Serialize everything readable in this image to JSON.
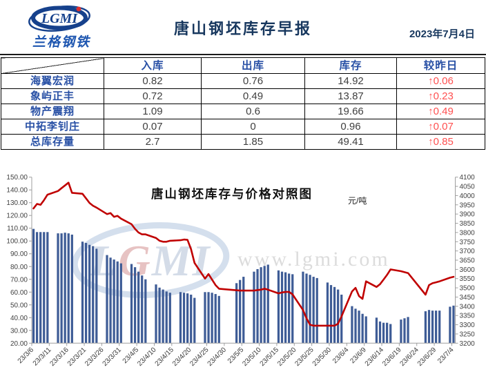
{
  "header": {
    "logo_text": "LGMI",
    "logo_sub": "兰格钢铁",
    "title": "唐山钢坯库存早报",
    "date": "2023年7月4日"
  },
  "table": {
    "corner_label": "",
    "columns": [
      "入库",
      "出库",
      "库存",
      "较昨日"
    ],
    "rows": [
      {
        "name": "海翼宏润",
        "in": "0.82",
        "out": "0.76",
        "stock": "14.92",
        "change": "↑0.06"
      },
      {
        "name": "象屿正丰",
        "in": "0.72",
        "out": "0.49",
        "stock": "13.87",
        "change": "↑0.23"
      },
      {
        "name": "物产震翔",
        "in": "1.09",
        "out": "0.6",
        "stock": "19.66",
        "change": "↑0.49"
      },
      {
        "name": "中拓李钊庄",
        "in": "0.07",
        "out": "0",
        "stock": "0.96",
        "change": "↑0.07"
      },
      {
        "name": "总库存量",
        "in": "2.7",
        "out": "1.85",
        "stock": "49.41",
        "change": "↑0.85"
      }
    ]
  },
  "chart_data": {
    "type": "bar+line",
    "title": "唐山钢坯库存与价格对照图",
    "unit_label": "元/吨",
    "watermark_text": "www.lgmi.com",
    "watermark_logo": "LGMI",
    "legend_position": "none",
    "grid": false,
    "colors": {
      "bar": "#3E5C96",
      "line": "#C00000"
    },
    "x_range": [
      "23/3/6",
      "23/7/4"
    ],
    "x_tick_labels": [
      "23/3/6",
      "23/3/11",
      "23/3/16",
      "23/3/21",
      "23/3/26",
      "23/3/31",
      "23/4/5",
      "23/4/10",
      "23/4/15",
      "23/4/20",
      "23/4/25",
      "23/4/30",
      "23/5/5",
      "23/5/10",
      "23/5/15",
      "23/5/20",
      "23/5/25",
      "23/5/30",
      "23/6/4",
      "23/6/9",
      "23/6/14",
      "23/6/19",
      "23/6/24",
      "23/6/29",
      "23/7/4"
    ],
    "left_axis": {
      "min": 20,
      "max": 150,
      "step": 10,
      "decimals": 2,
      "series": "库存"
    },
    "right_axis": {
      "min": 3200,
      "max": 4100,
      "step": 50,
      "decimals": 0,
      "series": "价格"
    },
    "series": [
      {
        "name": "库存",
        "type": "bar",
        "axis": "left",
        "points": [
          [
            "23/3/6",
            109.5
          ],
          [
            "23/3/7",
            107
          ],
          [
            "23/3/8",
            107
          ],
          [
            "23/3/9",
            107
          ],
          [
            "23/3/10",
            107
          ],
          [
            "23/3/13",
            106
          ],
          [
            "23/3/14",
            106
          ],
          [
            "23/3/15",
            106.5
          ],
          [
            "23/3/16",
            106
          ],
          [
            "23/3/17",
            105
          ],
          [
            "23/3/20",
            99.5
          ],
          [
            "23/3/21",
            98.5
          ],
          [
            "23/3/22",
            97
          ],
          [
            "23/3/23",
            96
          ],
          [
            "23/3/24",
            94
          ],
          [
            "23/3/27",
            89
          ],
          [
            "23/3/28",
            87
          ],
          [
            "23/3/29",
            85.5
          ],
          [
            "23/3/30",
            84
          ],
          [
            "23/3/31",
            82.5
          ],
          [
            "23/4/3",
            82
          ],
          [
            "23/4/4",
            79.5
          ],
          [
            "23/4/5",
            76
          ],
          [
            "23/4/6",
            73
          ],
          [
            "23/4/7",
            70
          ],
          [
            "23/4/10",
            66
          ],
          [
            "23/4/11",
            63.5
          ],
          [
            "23/4/12",
            62
          ],
          [
            "23/4/13",
            60.5
          ],
          [
            "23/4/14",
            59.5
          ],
          [
            "23/4/17",
            60
          ],
          [
            "23/4/18",
            59.5
          ],
          [
            "23/4/19",
            59
          ],
          [
            "23/4/20",
            58
          ],
          [
            "23/4/21",
            55.5
          ],
          [
            "23/4/24",
            60
          ],
          [
            "23/4/25",
            60
          ],
          [
            "23/4/26",
            59.5
          ],
          [
            "23/4/27",
            58.5
          ],
          [
            "23/4/28",
            57
          ],
          [
            "23/5/3",
            67
          ],
          [
            "23/5/4",
            69.5
          ],
          [
            "23/5/5",
            72
          ],
          [
            "23/5/8",
            76
          ],
          [
            "23/5/9",
            78
          ],
          [
            "23/5/10",
            79.5
          ],
          [
            "23/5/11",
            80.5
          ],
          [
            "23/5/12",
            81.5
          ],
          [
            "23/5/15",
            77
          ],
          [
            "23/5/16",
            76
          ],
          [
            "23/5/17",
            75.5
          ],
          [
            "23/5/18",
            74.5
          ],
          [
            "23/5/19",
            74
          ],
          [
            "23/5/22",
            76
          ],
          [
            "23/5/23",
            74.5
          ],
          [
            "23/5/24",
            73.5
          ],
          [
            "23/5/25",
            72
          ],
          [
            "23/5/26",
            71
          ],
          [
            "23/5/29",
            67.5
          ],
          [
            "23/5/30",
            65.5
          ],
          [
            "23/5/31",
            64
          ],
          [
            "23/6/1",
            62
          ],
          [
            "23/6/2",
            58
          ],
          [
            "23/6/5",
            49
          ],
          [
            "23/6/6",
            47
          ],
          [
            "23/6/7",
            45.5
          ],
          [
            "23/6/8",
            43
          ],
          [
            "23/6/9",
            41
          ],
          [
            "23/6/12",
            40
          ],
          [
            "23/6/13",
            37
          ],
          [
            "23/6/14",
            36
          ],
          [
            "23/6/15",
            36
          ],
          [
            "23/6/16",
            35
          ],
          [
            "23/6/19",
            38.5
          ],
          [
            "23/6/20",
            39.5
          ],
          [
            "23/6/21",
            40.5
          ],
          [
            "23/6/26",
            45
          ],
          [
            "23/6/27",
            46
          ],
          [
            "23/6/28",
            45.5
          ],
          [
            "23/6/29",
            45.5
          ],
          [
            "23/6/30",
            45.5
          ],
          [
            "23/7/3",
            48.56
          ],
          [
            "23/7/4",
            49.41
          ]
        ]
      },
      {
        "name": "价格",
        "type": "line",
        "axis": "right",
        "points": [
          [
            "23/3/6",
            3930
          ],
          [
            "23/3/7",
            3955
          ],
          [
            "23/3/8",
            3950
          ],
          [
            "23/3/9",
            3975
          ],
          [
            "23/3/10",
            4005
          ],
          [
            "23/3/13",
            4025
          ],
          [
            "23/3/14",
            4040
          ],
          [
            "23/3/15",
            4055
          ],
          [
            "23/3/16",
            4070
          ],
          [
            "23/3/17",
            4015
          ],
          [
            "23/3/20",
            4010
          ],
          [
            "23/3/21",
            3985
          ],
          [
            "23/3/22",
            3960
          ],
          [
            "23/3/23",
            3945
          ],
          [
            "23/3/24",
            3935
          ],
          [
            "23/3/27",
            3900
          ],
          [
            "23/3/28",
            3905
          ],
          [
            "23/3/29",
            3885
          ],
          [
            "23/3/30",
            3890
          ],
          [
            "23/3/31",
            3875
          ],
          [
            "23/4/3",
            3845
          ],
          [
            "23/4/4",
            3820
          ],
          [
            "23/4/5",
            3800
          ],
          [
            "23/4/6",
            3790
          ],
          [
            "23/4/7",
            3790
          ],
          [
            "23/4/10",
            3770
          ],
          [
            "23/4/11",
            3755
          ],
          [
            "23/4/12",
            3750
          ],
          [
            "23/4/13",
            3750
          ],
          [
            "23/4/14",
            3755
          ],
          [
            "23/4/17",
            3758
          ],
          [
            "23/4/18",
            3762
          ],
          [
            "23/4/19",
            3760
          ],
          [
            "23/4/20",
            3710
          ],
          [
            "23/4/21",
            3635
          ],
          [
            "23/4/24",
            3550
          ],
          [
            "23/4/25",
            3575
          ],
          [
            "23/4/26",
            3545
          ],
          [
            "23/4/27",
            3515
          ],
          [
            "23/4/28",
            3495
          ],
          [
            "23/5/4",
            3485
          ],
          [
            "23/5/5",
            3485
          ],
          [
            "23/5/8",
            3485
          ],
          [
            "23/5/9",
            3488
          ],
          [
            "23/5/10",
            3490
          ],
          [
            "23/5/11",
            3495
          ],
          [
            "23/5/12",
            3490
          ],
          [
            "23/5/15",
            3470
          ],
          [
            "23/5/16",
            3475
          ],
          [
            "23/5/17",
            3478
          ],
          [
            "23/5/18",
            3478
          ],
          [
            "23/5/19",
            3465
          ],
          [
            "23/5/22",
            3380
          ],
          [
            "23/5/23",
            3335
          ],
          [
            "23/5/24",
            3300
          ],
          [
            "23/5/25",
            3295
          ],
          [
            "23/5/26",
            3295
          ],
          [
            "23/5/29",
            3295
          ],
          [
            "23/5/30",
            3295
          ],
          [
            "23/5/31",
            3295
          ],
          [
            "23/6/1",
            3305
          ],
          [
            "23/6/2",
            3345
          ],
          [
            "23/6/5",
            3480
          ],
          [
            "23/6/6",
            3500
          ],
          [
            "23/6/7",
            3455
          ],
          [
            "23/6/8",
            3440
          ],
          [
            "23/6/9",
            3535
          ],
          [
            "23/6/12",
            3505
          ],
          [
            "23/6/13",
            3520
          ],
          [
            "23/6/14",
            3545
          ],
          [
            "23/6/15",
            3570
          ],
          [
            "23/6/16",
            3600
          ],
          [
            "23/6/19",
            3590
          ],
          [
            "23/6/20",
            3585
          ],
          [
            "23/6/21",
            3580
          ],
          [
            "23/6/26",
            3463
          ],
          [
            "23/6/27",
            3515
          ],
          [
            "23/6/28",
            3525
          ],
          [
            "23/6/29",
            3530
          ],
          [
            "23/6/30",
            3535
          ],
          [
            "23/7/3",
            3555
          ],
          [
            "23/7/4",
            3560
          ]
        ]
      }
    ]
  }
}
